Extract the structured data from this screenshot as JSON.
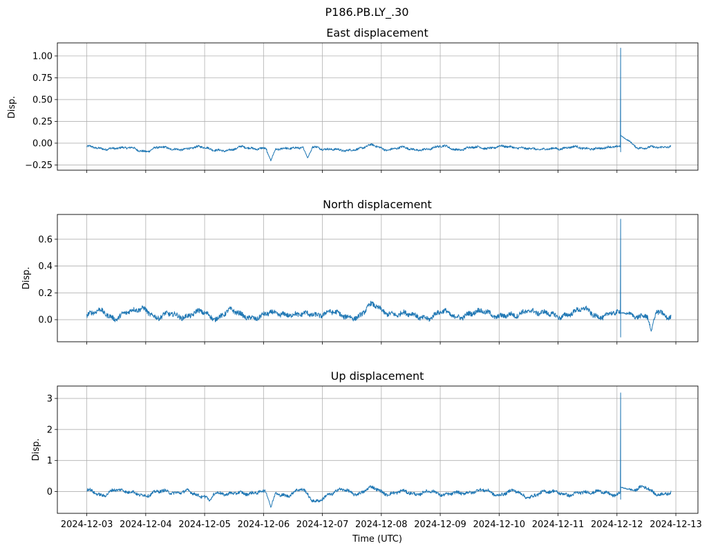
{
  "suptitle": "P186.PB.LY_.30",
  "x_axis": {
    "label": "Time (UTC)",
    "start_day": "2024-12-03",
    "tick_labels": [
      "2024-12-03",
      "2024-12-04",
      "2024-12-05",
      "2024-12-06",
      "2024-12-07",
      "2024-12-08",
      "2024-12-09",
      "2024-12-10",
      "2024-12-11",
      "2024-12-12",
      "2024-12-13"
    ]
  },
  "colors": {
    "series": "#1f77b4",
    "grid": "#b0b0b0",
    "axes": "#000000"
  },
  "chart_data": [
    {
      "type": "line",
      "title": "East displacement",
      "ylabel": "Disp.",
      "xlim": [
        "2024-12-02 12:00",
        "2024-12-13 09:00"
      ],
      "ylim": [
        -0.31,
        1.15
      ],
      "yticks": [
        -0.25,
        0,
        0.25,
        0.5,
        0.75,
        1.0
      ],
      "ytick_labels": [
        "−0.25",
        "0.00",
        "0.25",
        "0.50",
        "0.75",
        "1.00"
      ],
      "grid": true,
      "series": [
        {
          "x_range": [
            "2024-12-03 00:00",
            "2024-12-12 22:00"
          ],
          "baseline": -0.06,
          "noise": 0.012,
          "wander": [
            -0.04,
            -0.07,
            -0.05,
            -0.06,
            -0.09,
            -0.05,
            -0.07,
            -0.06,
            -0.05,
            -0.07,
            -0.09,
            -0.04,
            -0.06,
            -0.08,
            -0.05,
            -0.06,
            -0.04,
            -0.07,
            -0.09,
            -0.06,
            -0.03,
            -0.07,
            -0.05,
            -0.08,
            -0.06,
            -0.04,
            -0.07,
            -0.05,
            -0.06,
            -0.03,
            -0.06,
            -0.05,
            -0.08,
            -0.06,
            -0.04,
            -0.07,
            -0.05,
            -0.05,
            -0.04,
            -0.06,
            -0.05,
            -0.03
          ],
          "dips": [
            {
              "t": "2024-12-06 03:00",
              "v": -0.2
            },
            {
              "t": "2024-12-06 18:00",
              "v": -0.17
            }
          ],
          "spike": {
            "t": "2024-12-12 01:30",
            "max": 1.09,
            "min": -0.1,
            "after": 0.12
          }
        }
      ]
    },
    {
      "type": "line",
      "title": "North displacement",
      "ylabel": "Disp.",
      "xlim": [
        "2024-12-02 12:00",
        "2024-12-13 09:00"
      ],
      "ylim": [
        -0.165,
        0.785
      ],
      "yticks": [
        0.0,
        0.2,
        0.4,
        0.6
      ],
      "ytick_labels": [
        "0.0",
        "0.2",
        "0.4",
        "0.6"
      ],
      "grid": true,
      "series": [
        {
          "x_range": [
            "2024-12-03 00:00",
            "2024-12-12 22:00"
          ],
          "baseline": 0.03,
          "noise": 0.018,
          "wander": [
            0.03,
            0.06,
            0.02,
            0.05,
            0.09,
            0.01,
            0.04,
            0.03,
            0.05,
            0.02,
            0.06,
            0.03,
            0.02,
            0.04,
            0.05,
            0.03,
            0.04,
            0.06,
            0.02,
            0.03,
            0.1,
            0.06,
            0.04,
            0.03,
            0.02,
            0.05,
            0.03,
            0.04,
            0.06,
            0.03,
            0.02,
            0.08,
            0.04,
            0.03,
            0.05,
            0.07,
            0.03,
            0.04,
            0.05,
            0.02,
            0.06,
            0.03
          ],
          "dips": [
            {
              "t": "2024-12-12 14:00",
              "v": -0.09
            }
          ],
          "spike": {
            "t": "2024-12-12 01:30",
            "max": 0.75,
            "min": -0.13,
            "after": 0.05
          }
        }
      ]
    },
    {
      "type": "line",
      "title": "Up displacement",
      "ylabel": "Disp.",
      "xlim": [
        "2024-12-02 12:00",
        "2024-12-13 09:00"
      ],
      "ylim": [
        -0.7,
        3.4
      ],
      "yticks": [
        0,
        1,
        2,
        3
      ],
      "ytick_labels": [
        "0",
        "1",
        "2",
        "3"
      ],
      "grid": true,
      "series": [
        {
          "x_range": [
            "2024-12-03 00:00",
            "2024-12-12 22:00"
          ],
          "baseline": -0.05,
          "noise": 0.05,
          "wander": [
            0.05,
            -0.15,
            0.1,
            -0.05,
            -0.1,
            0.0,
            -0.05,
            0.05,
            -0.2,
            0.0,
            -0.1,
            -0.05,
            0.0,
            -0.05,
            -0.1,
            0.05,
            -0.3,
            -0.1,
            0.05,
            -0.05,
            0.1,
            -0.05,
            0.0,
            -0.1,
            0.05,
            -0.15,
            0.0,
            -0.05,
            0.05,
            -0.1,
            0.0,
            -0.15,
            -0.05,
            0.0,
            -0.1,
            -0.05,
            0.05,
            -0.15,
            0.0,
            0.15,
            -0.1,
            0.0
          ],
          "dips": [
            {
              "t": "2024-12-06 03:00",
              "v": -0.5
            },
            {
              "t": "2024-12-05 02:00",
              "v": -0.3
            }
          ],
          "spike": {
            "t": "2024-12-12 01:30",
            "max": 3.18,
            "min": -0.25,
            "after": 0.2
          }
        }
      ]
    }
  ]
}
